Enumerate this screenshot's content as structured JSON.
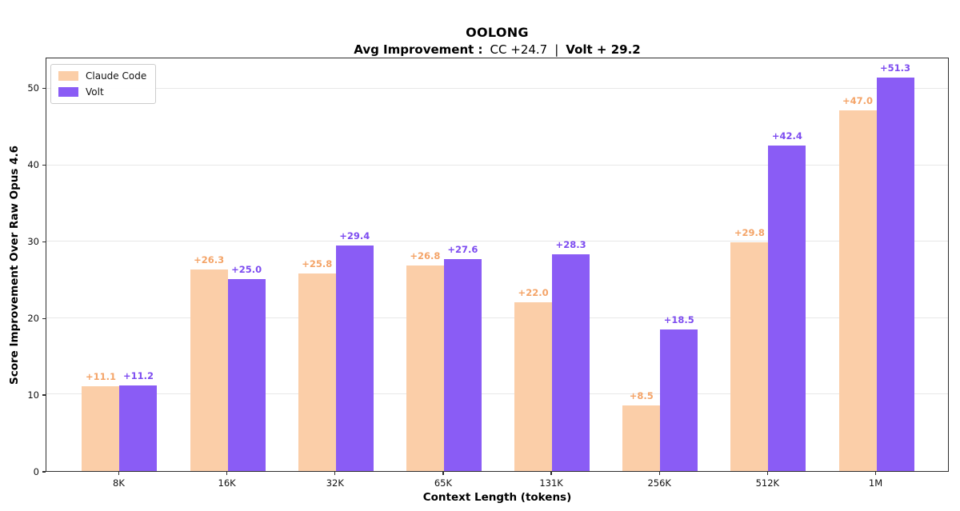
{
  "title": "OOLONG",
  "subtitle": {
    "prefix": "Avg Improvement :",
    "cc_value": "CC +24.7",
    "separator": "|",
    "volt_value": "Volt + 29.2"
  },
  "colors": {
    "claude_code_bar": "#fbcea8",
    "claude_code_label": "#f4a468",
    "volt_bar": "#8a5cf5",
    "volt_label": "#7d4cf0",
    "gridline": "#e8e8e8",
    "axis_frame": "#2e2e2e"
  },
  "chart_data": {
    "type": "bar",
    "title": "OOLONG",
    "subtitle": "Avg Improvement: CC +24.7 | Volt +29.2",
    "categories": [
      "8K",
      "16K",
      "32K",
      "65K",
      "131K",
      "256K",
      "512K",
      "1M"
    ],
    "series": [
      {
        "name": "Claude Code",
        "values": [
          11.1,
          26.3,
          25.8,
          26.8,
          22.0,
          8.5,
          29.8,
          47.0
        ],
        "color": "#fbcea8",
        "label_color": "#f4a468"
      },
      {
        "name": "Volt",
        "values": [
          11.2,
          25.0,
          29.4,
          27.6,
          28.3,
          18.5,
          42.4,
          51.3
        ],
        "color": "#8a5cf5",
        "label_color": "#7d4cf0"
      }
    ],
    "value_label_prefix": "+",
    "value_label_decimals": 1,
    "xlabel": "Context Length (tokens)",
    "ylabel": "Score Improvement Over Raw Opus 4.6",
    "yticks": [
      0,
      10,
      20,
      30,
      40,
      50
    ],
    "ylim": [
      0,
      54
    ],
    "grid": "horizontal",
    "legend_position": "upper-left"
  }
}
